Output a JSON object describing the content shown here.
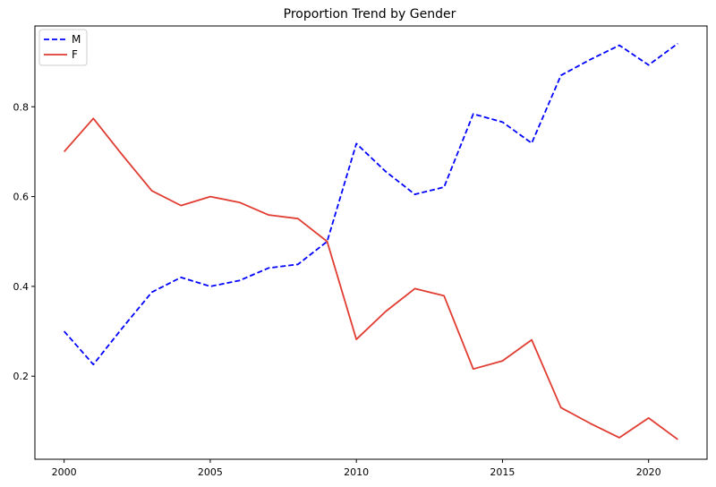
{
  "chart_data": {
    "type": "line",
    "title": "Proportion Trend by Gender",
    "xlabel": "",
    "ylabel": "",
    "x": [
      2000,
      2001,
      2002,
      2003,
      2004,
      2005,
      2006,
      2007,
      2008,
      2009,
      2010,
      2011,
      2012,
      2013,
      2014,
      2015,
      2016,
      2017,
      2018,
      2019,
      2020,
      2021
    ],
    "series": [
      {
        "name": "M",
        "color": "#0000ff",
        "style": "dashed",
        "values": [
          0.3,
          0.226,
          0.308,
          0.387,
          0.42,
          0.4,
          0.413,
          0.441,
          0.449,
          0.5,
          0.718,
          0.656,
          0.605,
          0.621,
          0.784,
          0.766,
          0.719,
          0.87,
          0.905,
          0.937,
          0.893,
          0.941
        ]
      },
      {
        "name": "F",
        "color": "#e03c31",
        "style": "solid",
        "values": [
          0.7,
          0.774,
          0.692,
          0.613,
          0.58,
          0.6,
          0.587,
          0.559,
          0.551,
          0.5,
          0.282,
          0.344,
          0.395,
          0.379,
          0.216,
          0.234,
          0.281,
          0.13,
          0.095,
          0.063,
          0.107,
          0.059
        ]
      }
    ],
    "xlim": [
      1999.0,
      2022.0
    ],
    "ylim": [
      0.015,
      0.98
    ],
    "xticks": [
      2000,
      2005,
      2010,
      2015,
      2020
    ],
    "xtick_labels": [
      "2000",
      "2005",
      "2010",
      "2015",
      "2020"
    ],
    "yticks": [
      0.2,
      0.4,
      0.6,
      0.8
    ],
    "ytick_labels": [
      "0.2",
      "0.4",
      "0.6",
      "0.8"
    ],
    "grid": false,
    "legend_position": "top-left"
  }
}
